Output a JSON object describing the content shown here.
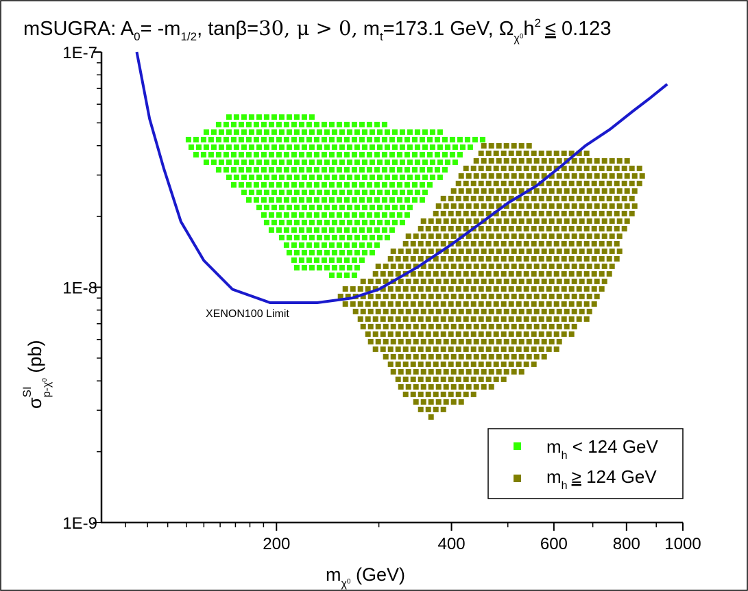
{
  "chart_data": {
    "type": "scatter",
    "title": "mSUGRA: A0= -m1/2, tanβ=30, μ > 0, mt=173.1 GeV, Ωχ0h2 ≤ 0.123",
    "title_parts": {
      "p1": "mSUGRA: A",
      "s1": "0",
      "p2": "= -m",
      "s2": "1/2",
      "p3": ", tanβ=",
      "p4": "30, μ > 0,",
      "p5": " m",
      "s3": "t",
      "p6": "=173.1 GeV, Ω",
      "s4": "χ",
      "s4b": "0",
      "p7": "h",
      "sup": "2",
      "p8": "≤",
      "p9": " 0.123"
    },
    "xlabel": "mχ0 (GeV)",
    "xlabel_parts": {
      "main": "m",
      "sub": "χ",
      "subsup": "0",
      "rest": " (GeV)"
    },
    "ylabel": "σSIp-χ0 (pb)",
    "ylabel_parts": {
      "main": "σ",
      "sup": "SI",
      "sub": "p-χ",
      "subsup": "0",
      "rest": " (pb)"
    },
    "x_scale": "log",
    "y_scale": "log",
    "xlim": [
      100,
      1000
    ],
    "ylim": [
      1e-09,
      1e-07
    ],
    "x_tick_labels": [
      {
        "value": 200,
        "label": "200"
      },
      {
        "value": 400,
        "label": "400"
      },
      {
        "value": 600,
        "label": "600"
      },
      {
        "value": 800,
        "label": "800"
      },
      {
        "value": 1000,
        "label": "1000"
      }
    ],
    "y_tick_labels": [
      {
        "value": 1e-09,
        "label": "1E-9"
      },
      {
        "value": 1e-08,
        "label": "1E-8"
      },
      {
        "value": 1e-07,
        "label": "1E-7"
      }
    ],
    "grid": false,
    "legend_position": "bottom-right",
    "series": [
      {
        "name": "mh < 124 GeV",
        "name_parts": {
          "main": "m",
          "sub": "h",
          "rest": " < 124 GeV"
        },
        "color": "#33ff00",
        "marker": "square",
        "region_outline": [
          [
            137,
            4.1e-08
          ],
          [
            165,
            5.4e-08
          ],
          [
            180,
            5.7e-08
          ],
          [
            250,
            5.2e-08
          ],
          [
            350,
            4.75e-08
          ],
          [
            460,
            4.3e-08
          ],
          [
            430,
            3.8e-08
          ],
          [
            390,
            3e-08
          ],
          [
            350,
            2.2e-08
          ],
          [
            310,
            1.6e-08
          ],
          [
            285,
            1.3e-08
          ],
          [
            270,
            1.08e-08
          ],
          [
            215,
            1.2e-08
          ],
          [
            200,
            1.6e-08
          ],
          [
            180,
            2.3e-08
          ],
          [
            160,
            3e-08
          ],
          [
            145,
            3.6e-08
          ]
        ]
      },
      {
        "name": "mh ≥ 124 GeV",
        "name_parts": {
          "main": "m",
          "sub": "h",
          "op": "≥",
          "rest": " 124 GeV"
        },
        "color": "#7f7f00",
        "marker": "square",
        "region_outline": [
          [
            255,
            9.5e-09
          ],
          [
            290,
            1.15e-08
          ],
          [
            320,
            1.45e-08
          ],
          [
            355,
            1.9e-08
          ],
          [
            400,
            2.6e-08
          ],
          [
            430,
            3.4e-08
          ],
          [
            460,
            4.3e-08
          ],
          [
            550,
            4e-08
          ],
          [
            700,
            3.7e-08
          ],
          [
            850,
            3.4e-08
          ],
          [
            860,
            3e-08
          ],
          [
            820,
            2e-08
          ],
          [
            760,
            1.2e-08
          ],
          [
            690,
            7.5e-09
          ],
          [
            600,
            5.2e-09
          ],
          [
            500,
            4e-09
          ],
          [
            420,
            3.3e-09
          ],
          [
            370,
            2.7e-09
          ],
          [
            345,
            3e-09
          ],
          [
            320,
            4e-09
          ],
          [
            295,
            5.5e-09
          ],
          [
            270,
            7.5e-09
          ]
        ]
      }
    ],
    "limit_curve": {
      "name": "XENON100 Limit",
      "color": "#1a1acc",
      "points": [
        [
          115,
          1e-07
        ],
        [
          121,
          5.2e-08
        ],
        [
          128,
          3.2e-08
        ],
        [
          137,
          1.9e-08
        ],
        [
          150,
          1.3e-08
        ],
        [
          168,
          9.8e-09
        ],
        [
          195,
          8.6e-09
        ],
        [
          235,
          8.6e-09
        ],
        [
          270,
          9e-09
        ],
        [
          300,
          9.8e-09
        ],
        [
          350,
          1.22e-08
        ],
        [
          400,
          1.52e-08
        ],
        [
          450,
          1.88e-08
        ],
        [
          500,
          2.28e-08
        ],
        [
          560,
          2.7e-08
        ],
        [
          620,
          3.3e-08
        ],
        [
          680,
          4e-08
        ],
        [
          750,
          4.7e-08
        ],
        [
          820,
          5.6e-08
        ],
        [
          880,
          6.4e-08
        ],
        [
          940,
          7.3e-08
        ]
      ]
    }
  }
}
